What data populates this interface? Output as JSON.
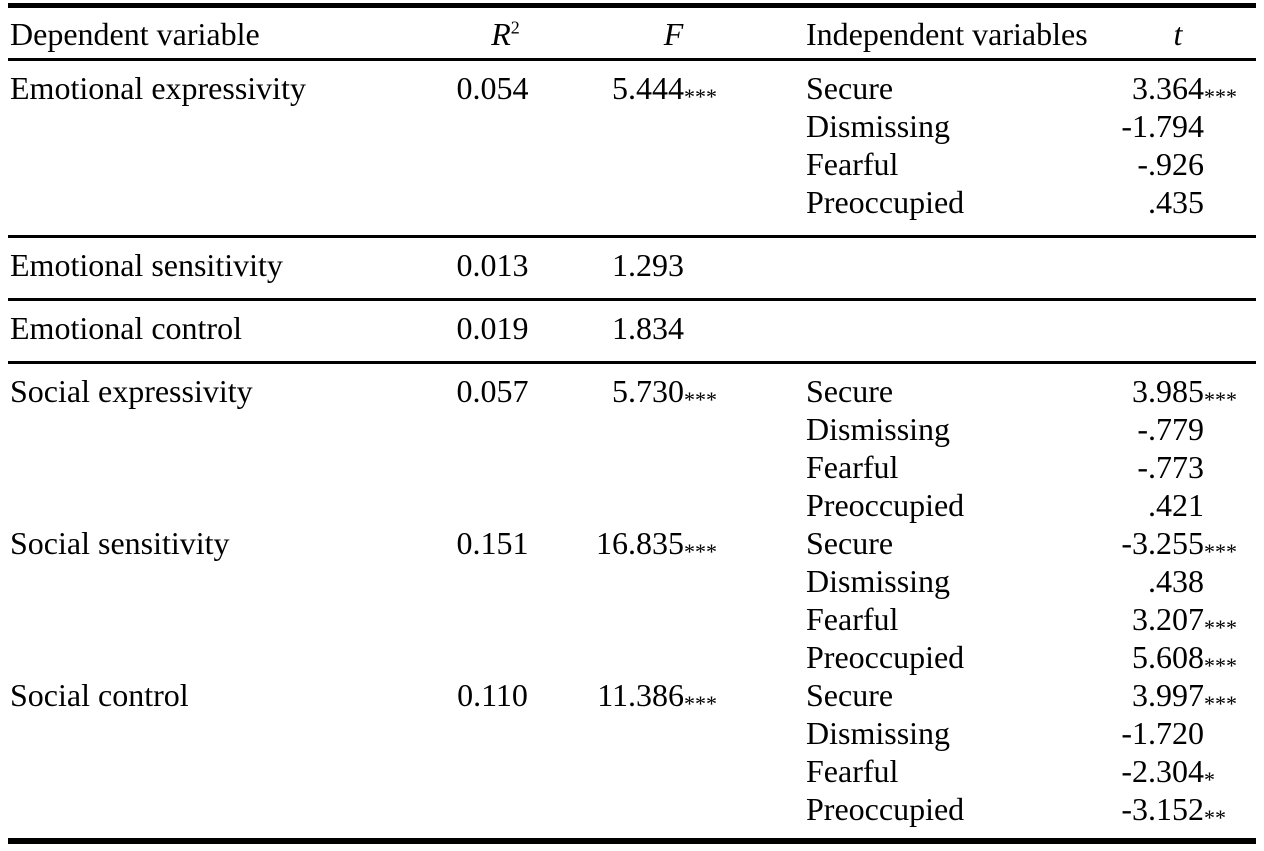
{
  "table": {
    "headers": {
      "dependent": "Dependent variable",
      "r2_base": "R",
      "r2_sup": "2",
      "f": "F",
      "independent": "Independent variables",
      "t": "t"
    },
    "colors": {
      "text": "#000000",
      "rule": "#000000",
      "background": "#ffffff"
    },
    "sections": [
      {
        "rows": [
          {
            "dep": "Emotional expressivity",
            "r2": "0.054",
            "f": "5.444",
            "f_stars": "***",
            "iv": "Secure",
            "t": "3.364",
            "t_stars": "***"
          },
          {
            "dep": "",
            "r2": "",
            "f": "",
            "f_stars": "",
            "iv": "Dismissing",
            "t": "-1.794",
            "t_stars": ""
          },
          {
            "dep": "",
            "r2": "",
            "f": "",
            "f_stars": "",
            "iv": "Fearful",
            "t": "-.926",
            "t_stars": ""
          },
          {
            "dep": "",
            "r2": "",
            "f": "",
            "f_stars": "",
            "iv": "Preoccupied",
            "t": ".435",
            "t_stars": ""
          }
        ]
      },
      {
        "rows": [
          {
            "dep": "Emotional sensitivity",
            "r2": "0.013",
            "f": "1.293",
            "f_stars": "",
            "iv": "",
            "t": "",
            "t_stars": ""
          }
        ]
      },
      {
        "rows": [
          {
            "dep": "Emotional control",
            "r2": "0.019",
            "f": "1.834",
            "f_stars": "",
            "iv": "",
            "t": "",
            "t_stars": ""
          }
        ]
      },
      {
        "rows": [
          {
            "dep": "Social expressivity",
            "r2": "0.057",
            "f": "5.730",
            "f_stars": "***",
            "iv": "Secure",
            "t": "3.985",
            "t_stars": "***"
          },
          {
            "dep": "",
            "r2": "",
            "f": "",
            "f_stars": "",
            "iv": "Dismissing",
            "t": "-.779",
            "t_stars": ""
          },
          {
            "dep": "",
            "r2": "",
            "f": "",
            "f_stars": "",
            "iv": "Fearful",
            "t": "-.773",
            "t_stars": ""
          },
          {
            "dep": "",
            "r2": "",
            "f": "",
            "f_stars": "",
            "iv": "Preoccupied",
            "t": ".421",
            "t_stars": ""
          },
          {
            "dep": "Social sensitivity",
            "r2": "0.151",
            "f": "16.835",
            "f_stars": "***",
            "iv": "Secure",
            "t": "-3.255",
            "t_stars": "***"
          },
          {
            "dep": "",
            "r2": "",
            "f": "",
            "f_stars": "",
            "iv": "Dismissing",
            "t": ".438",
            "t_stars": ""
          },
          {
            "dep": "",
            "r2": "",
            "f": "",
            "f_stars": "",
            "iv": "Fearful",
            "t": "3.207",
            "t_stars": "***"
          },
          {
            "dep": "",
            "r2": "",
            "f": "",
            "f_stars": "",
            "iv": "Preoccupied",
            "t": "5.608",
            "t_stars": "***"
          },
          {
            "dep": "Social control",
            "r2": "0.110",
            "f": "11.386",
            "f_stars": "***",
            "iv": "Secure",
            "t": "3.997",
            "t_stars": "***"
          },
          {
            "dep": "",
            "r2": "",
            "f": "",
            "f_stars": "",
            "iv": "Dismissing",
            "t": "-1.720",
            "t_stars": ""
          },
          {
            "dep": "",
            "r2": "",
            "f": "",
            "f_stars": "",
            "iv": "Fearful",
            "t": "-2.304",
            "t_stars": "*"
          },
          {
            "dep": "",
            "r2": "",
            "f": "",
            "f_stars": "",
            "iv": "Preoccupied",
            "t": "-3.152",
            "t_stars": "**"
          }
        ]
      }
    ]
  }
}
